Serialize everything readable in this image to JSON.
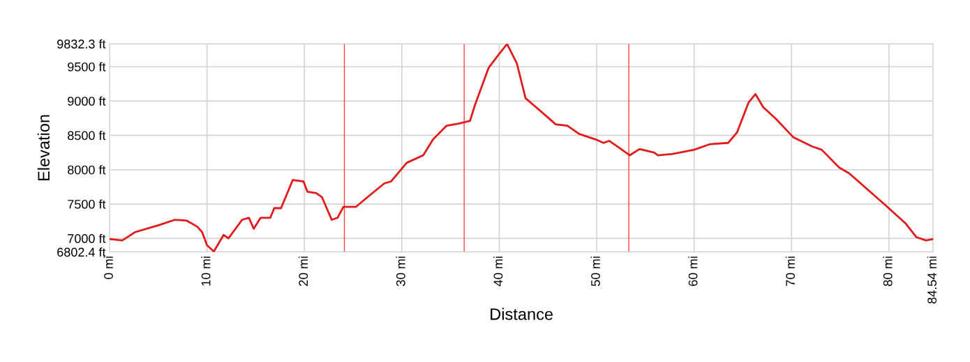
{
  "chart_data": {
    "type": "line",
    "xlabel": "Distance",
    "ylabel": "Elevation",
    "x": [
      0,
      1.3,
      2.6,
      5.0,
      6.7,
      7.9,
      9.0,
      9.5,
      10.0,
      10.7,
      11.7,
      12.2,
      13.6,
      14.3,
      14.8,
      15.5,
      16.5,
      16.9,
      17.6,
      18.8,
      19.9,
      20.3,
      21.2,
      21.8,
      22.8,
      23.4,
      24.0,
      25.3,
      26.9,
      28.2,
      28.9,
      30.5,
      32.2,
      33.2,
      34.6,
      35.8,
      37.0,
      37.5,
      38.9,
      39.8,
      40.8,
      41.8,
      42.7,
      44.1,
      45.8,
      47.0,
      48.2,
      49.9,
      50.7,
      51.3,
      52.5,
      53.4,
      54.4,
      55.9,
      56.3,
      57.8,
      60.0,
      61.6,
      63.5,
      64.4,
      65.6,
      66.3,
      67.1,
      68.4,
      70.2,
      72.1,
      73.1,
      74.9,
      75.9,
      79.5,
      81.7,
      82.8,
      83.8,
      84.54
    ],
    "series": [
      {
        "color": "#e31a1c",
        "values": [
          6990,
          6970,
          7090,
          7190,
          7270,
          7260,
          7170,
          7090,
          6900,
          6810,
          7050,
          7000,
          7270,
          7300,
          7140,
          7300,
          7300,
          7440,
          7440,
          7850,
          7830,
          7680,
          7660,
          7600,
          7270,
          7300,
          7460,
          7460,
          7650,
          7800,
          7830,
          8100,
          8210,
          8440,
          8640,
          8670,
          8710,
          8940,
          9480,
          9650,
          9830,
          9550,
          9040,
          8870,
          8660,
          8640,
          8520,
          8440,
          8390,
          8420,
          8300,
          8210,
          8300,
          8250,
          8210,
          8230,
          8290,
          8370,
          8390,
          8540,
          8980,
          9100,
          8910,
          8740,
          8470,
          8340,
          8290,
          8030,
          7950,
          7500,
          7220,
          7020,
          6970,
          6990
        ]
      }
    ],
    "xlim": [
      0,
      84.54
    ],
    "xticks": [
      {
        "value": 0,
        "label": "0 mi"
      },
      {
        "value": 10,
        "label": "10 mi"
      },
      {
        "value": 20,
        "label": "20 mi"
      },
      {
        "value": 30,
        "label": "30 mi"
      },
      {
        "value": 40,
        "label": "40 mi"
      },
      {
        "value": 50,
        "label": "50 mi"
      },
      {
        "value": 60,
        "label": "60 mi"
      },
      {
        "value": 70,
        "label": "70 mi"
      },
      {
        "value": 80,
        "label": "80 mi"
      },
      {
        "value": 84.54,
        "label": "84.54 mi"
      }
    ],
    "ylim": [
      6802.4,
      9832.3
    ],
    "yticks": [
      {
        "value": 6802.4,
        "label": "6802.4 ft"
      },
      {
        "value": 7000,
        "label": "7000 ft"
      },
      {
        "value": 7500,
        "label": "7500 ft"
      },
      {
        "value": 8000,
        "label": "8000 ft"
      },
      {
        "value": 8500,
        "label": "8500 ft"
      },
      {
        "value": 9000,
        "label": "9000 ft"
      },
      {
        "value": 9500,
        "label": "9500 ft"
      },
      {
        "value": 9832.3,
        "label": "9832.3 ft"
      }
    ],
    "ref_lines": [
      {
        "axis": "x",
        "value": 24.1,
        "color": "#ff4040"
      },
      {
        "axis": "x",
        "value": 36.4,
        "color": "#ff4040"
      },
      {
        "axis": "x",
        "value": 53.3,
        "color": "#ff4040"
      }
    ],
    "grid": true
  }
}
